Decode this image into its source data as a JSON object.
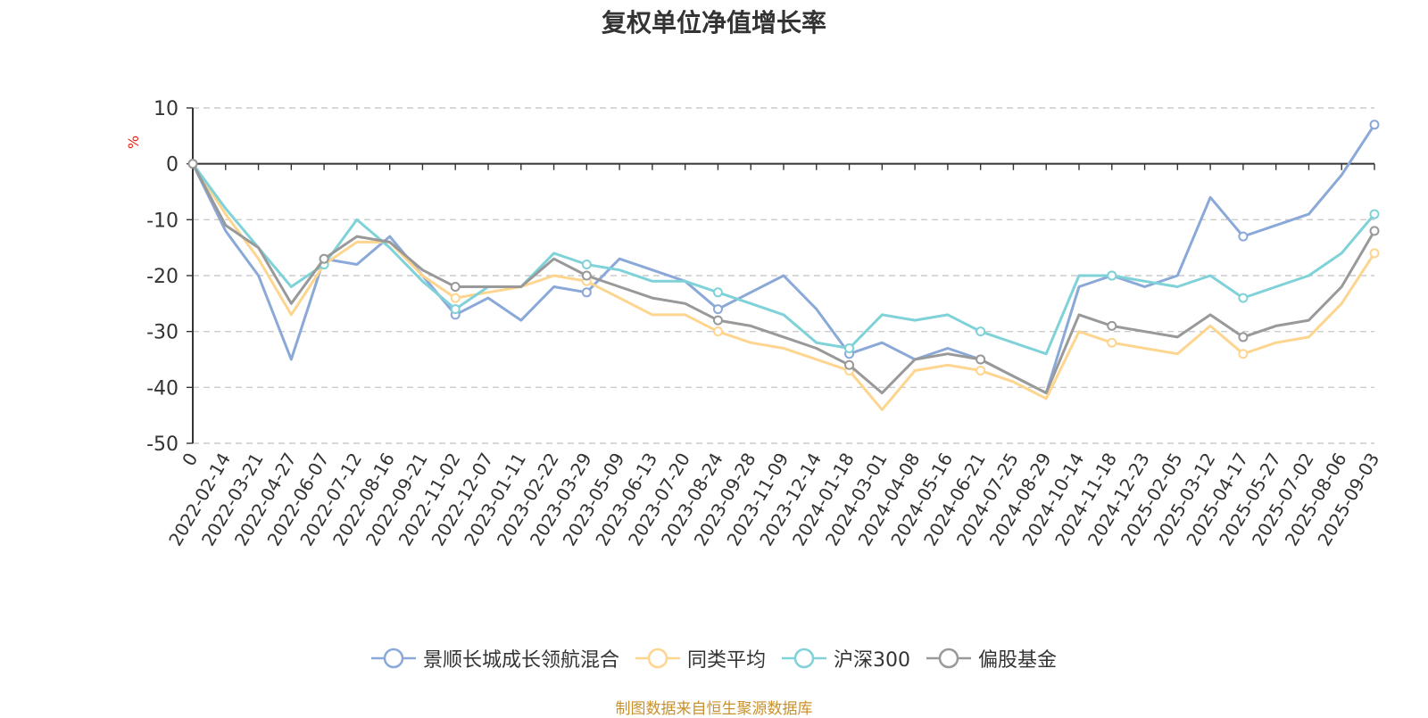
{
  "chart_data": {
    "type": "line",
    "title": "复权单位净值增长率",
    "ylabel": "%",
    "ylim": [
      -50,
      10
    ],
    "y_ticks": [
      "10",
      "0",
      "-10",
      "-20",
      "-30",
      "-40",
      "-50"
    ],
    "grid": true,
    "legend_position": "bottom",
    "x_tick_labels": [
      "0",
      "2022-02-14",
      "2022-03-21",
      "2022-04-27",
      "2022-06-07",
      "2022-07-12",
      "2022-08-16",
      "2022-09-21",
      "2022-11-02",
      "2022-12-07",
      "2023-01-11",
      "2023-02-22",
      "2023-03-29",
      "2023-05-09",
      "2023-06-13",
      "2023-07-20",
      "2023-08-24",
      "2023-09-28",
      "2023-11-09",
      "2023-12-14",
      "2024-01-18",
      "2024-03-01",
      "2024-04-08",
      "2024-05-16",
      "2024-06-21",
      "2024-07-25",
      "2024-08-29",
      "2024-10-14",
      "2024-11-18",
      "2024-12-23",
      "2025-02-05",
      "2025-03-12",
      "2025-04-17",
      "2025-05-27",
      "2025-07-02",
      "2025-08-06",
      "2025-09-03"
    ],
    "x": [
      "0",
      "2022-02-14",
      "2022-03-21",
      "2022-04-27",
      "2022-06-07",
      "2022-07-12",
      "2022-08-16",
      "2022-09-21",
      "2022-11-02",
      "2022-12-07",
      "2023-01-11",
      "2023-02-22",
      "2023-03-29",
      "2023-05-09",
      "2023-06-13",
      "2023-07-20",
      "2023-08-24",
      "2023-09-28",
      "2023-11-09",
      "2023-12-14",
      "2024-01-18",
      "2024-03-01",
      "2024-04-08",
      "2024-05-16",
      "2024-06-21",
      "2024-07-25",
      "2024-08-29",
      "2024-10-14",
      "2024-11-18",
      "2024-12-23",
      "2025-02-05",
      "2025-03-12",
      "2025-04-17",
      "2025-05-27",
      "2025-07-02",
      "2025-08-06",
      "2025-09-03"
    ],
    "series": [
      {
        "name": "景顺长城成长领航混合",
        "color": "#8aa8d8",
        "values": [
          0,
          -12,
          -20,
          -35,
          -17,
          -18,
          -13,
          -20,
          -27,
          -24,
          -28,
          -22,
          -23,
          -17,
          -19,
          -21,
          -26,
          -23,
          -20,
          -26,
          -34,
          -32,
          -35,
          -33,
          -35,
          -38,
          -41,
          -22,
          -20,
          -22,
          -20,
          -6,
          -13,
          -11,
          -9,
          -2,
          7
        ]
      },
      {
        "name": "同类平均",
        "color": "#fdd58f",
        "values": [
          0,
          -9,
          -17,
          -27,
          -18,
          -14,
          -14,
          -20,
          -24,
          -23,
          -22,
          -20,
          -21,
          -24,
          -27,
          -27,
          -30,
          -32,
          -33,
          -35,
          -37,
          -44,
          -37,
          -36,
          -37,
          -39,
          -42,
          -30,
          -32,
          -33,
          -34,
          -29,
          -34,
          -32,
          -31,
          -25,
          -16
        ]
      },
      {
        "name": "沪深300",
        "color": "#7fd2d8",
        "values": [
          0,
          -8,
          -15,
          -22,
          -18,
          -10,
          -15,
          -21,
          -26,
          -22,
          -22,
          -16,
          -18,
          -19,
          -21,
          -21,
          -23,
          -25,
          -27,
          -32,
          -33,
          -27,
          -28,
          -27,
          -30,
          -32,
          -34,
          -20,
          -20,
          -21,
          -22,
          -20,
          -24,
          -22,
          -20,
          -16,
          -9
        ]
      },
      {
        "name": "偏股基金",
        "color": "#999999",
        "values": [
          0,
          -11,
          -15,
          -25,
          -17,
          -13,
          -14,
          -19,
          -22,
          -22,
          -22,
          -17,
          -20,
          -22,
          -24,
          -25,
          -28,
          -29,
          -31,
          -33,
          -36,
          -41,
          -35,
          -34,
          -35,
          -38,
          -41,
          -27,
          -29,
          -30,
          -31,
          -27,
          -31,
          -29,
          -28,
          -22,
          -12
        ]
      }
    ]
  },
  "source_note": "制图数据来自恒生聚源数据库"
}
